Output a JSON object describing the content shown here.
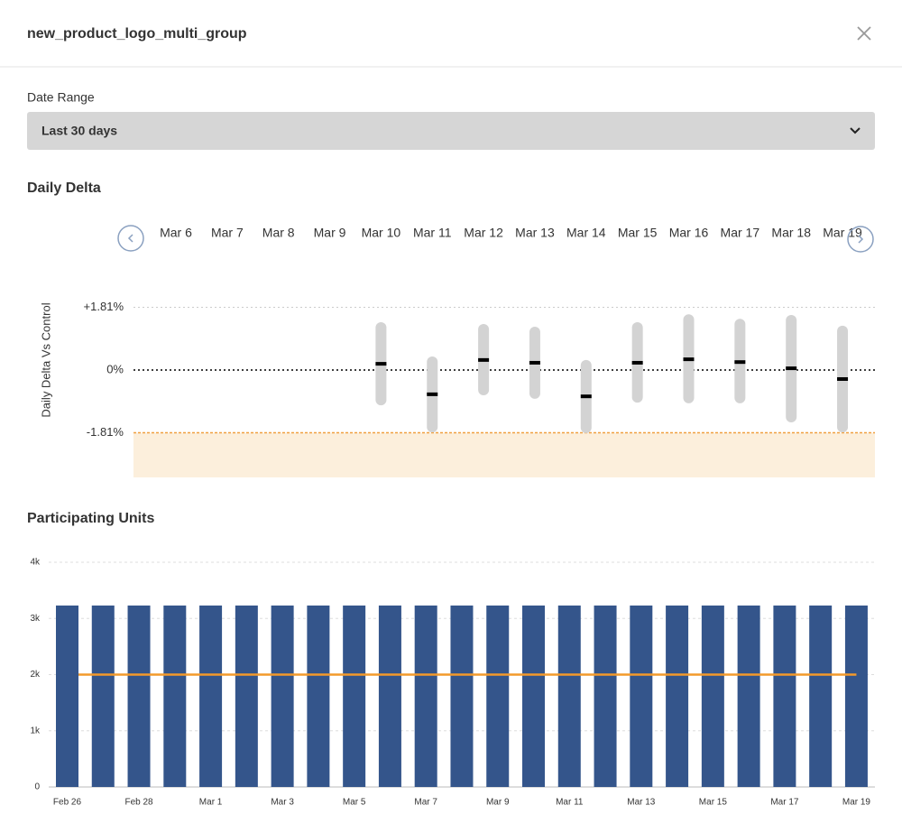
{
  "header": {
    "title": "new_product_logo_multi_group"
  },
  "date_range": {
    "label": "Date Range",
    "value": "Last 30 days"
  },
  "chart_data": [
    {
      "type": "interval",
      "title": "Daily Delta",
      "y_label": "Daily Delta Vs Control",
      "categories": [
        "Mar 6",
        "Mar 7",
        "Mar 8",
        "Mar 9",
        "Mar 10",
        "Mar 11",
        "Mar 12",
        "Mar 13",
        "Mar 14",
        "Mar 15",
        "Mar 16",
        "Mar 17",
        "Mar 18",
        "Mar 19"
      ],
      "low": [
        null,
        null,
        null,
        null,
        -1.02,
        -1.8,
        -0.73,
        -0.83,
        -1.82,
        -0.94,
        -0.96,
        -0.96,
        -1.51,
        -1.8
      ],
      "high": [
        null,
        null,
        null,
        null,
        1.38,
        0.39,
        1.33,
        1.25,
        0.29,
        1.38,
        1.61,
        1.48,
        1.59,
        1.28
      ],
      "values": [
        null,
        null,
        null,
        null,
        0.18,
        -0.7,
        0.29,
        0.21,
        -0.76,
        0.21,
        0.31,
        0.23,
        0.05,
        -0.26
      ],
      "color": "#d3d3d3",
      "point_color": "#000000",
      "threshold": -1.81,
      "threshold_color": "#f0a040",
      "threshold_fill": "#fcefdc",
      "ylim": [
        -3.1,
        2.1
      ],
      "yticks": [
        {
          "value": -1.81,
          "label": "-1.81%"
        },
        {
          "value": 0,
          "label": "0%"
        },
        {
          "value": 1.81,
          "label": "+1.81%"
        }
      ]
    },
    {
      "type": "bar",
      "title": "Participating Units",
      "categories": [
        "Feb 26",
        null,
        "Feb 28",
        null,
        "Mar 1",
        null,
        "Mar 3",
        null,
        "Mar 5",
        null,
        "Mar 7",
        null,
        "Mar 9",
        null,
        "Mar 11",
        null,
        "Mar 13",
        null,
        "Mar 15",
        null,
        "Mar 17",
        null,
        "Mar 19"
      ],
      "values": [
        3230,
        3230,
        3230,
        3230,
        3230,
        3230,
        3230,
        3230,
        3230,
        3230,
        3230,
        3230,
        3230,
        3230,
        3230,
        3230,
        3230,
        3230,
        3230,
        3230,
        3230,
        3230,
        3230
      ],
      "color": "#34558b",
      "target": 2000,
      "target_color": "#f39a2b",
      "ylim": [
        0,
        4000
      ],
      "yticks": [
        0,
        {
          "value": 1000,
          "label": "1k"
        },
        {
          "value": 2000,
          "label": "2k"
        },
        {
          "value": 3000,
          "label": "3k"
        },
        {
          "value": 4000,
          "label": "4k"
        }
      ],
      "grid": true
    }
  ]
}
